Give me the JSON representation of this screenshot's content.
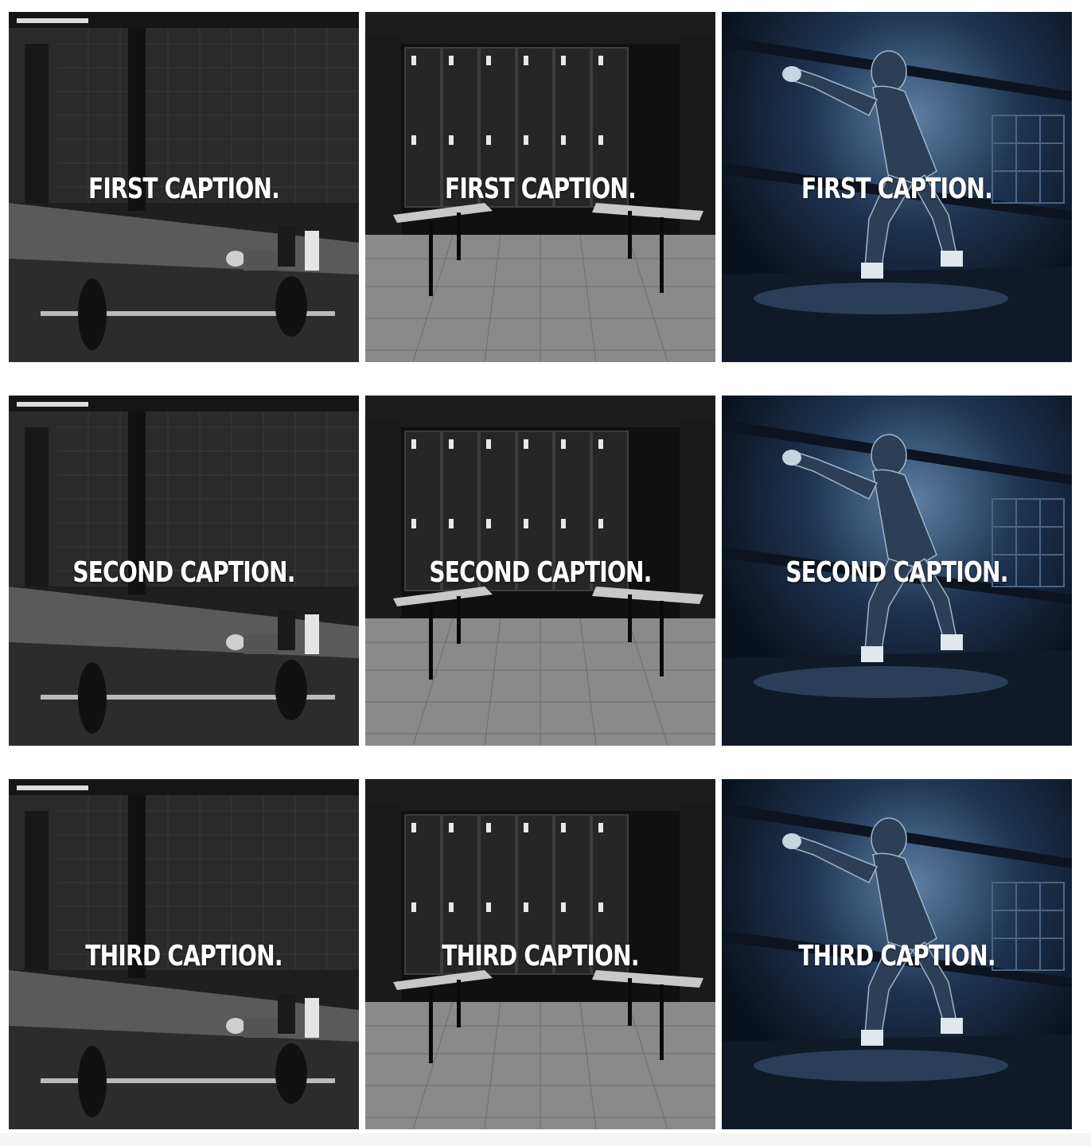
{
  "gallery": {
    "rows": [
      {
        "caption": "FIRST CAPTION."
      },
      {
        "caption": "SECOND CAPTION."
      },
      {
        "caption": "THIRD CAPTION."
      }
    ],
    "scenes": [
      "gym-floor",
      "locker-room",
      "boxer"
    ]
  }
}
